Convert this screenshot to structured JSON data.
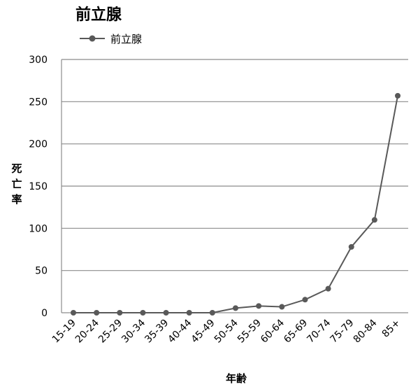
{
  "chart_data": {
    "type": "line",
    "title": "前立腺",
    "xlabel": "年齢",
    "ylabel": "死亡率",
    "legend": {
      "position": "top-left",
      "entries": [
        "前立腺"
      ]
    },
    "grid": {
      "horizontal": true,
      "vertical": false
    },
    "categories": [
      "15-19",
      "20-24",
      "25-29",
      "30-34",
      "35-39",
      "40-44",
      "45-49",
      "50-54",
      "55-59",
      "60-64",
      "65-69",
      "70-74",
      "75-79",
      "80-84",
      "85+"
    ],
    "series": [
      {
        "name": "前立腺",
        "color": "#595959",
        "values": [
          0,
          0,
          0,
          0,
          0,
          0,
          0,
          5.5,
          8,
          7,
          15.5,
          28.5,
          78,
          110,
          257
        ]
      }
    ],
    "ylim": [
      0,
      300
    ],
    "yticks": [
      "0",
      "50",
      "100",
      "150",
      "200",
      "250",
      "300"
    ]
  }
}
